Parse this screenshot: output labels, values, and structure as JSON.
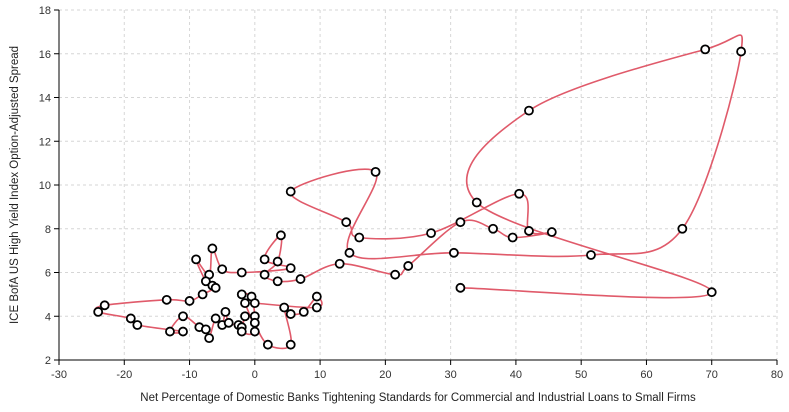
{
  "chart_data": {
    "type": "scatter",
    "connected": true,
    "line_style": "smooth",
    "xlabel": "Net Percentage of Domestic Banks Tightening Standards for Commercial and Industrial Loans to Small Firms",
    "ylabel": "ICE BofA US High Yield Index Option-Adjusted Spread",
    "xlim": [
      -30,
      80
    ],
    "ylim": [
      2,
      18
    ],
    "x_ticks": [
      -30,
      -20,
      -10,
      0,
      10,
      20,
      30,
      40,
      50,
      60,
      70,
      80
    ],
    "y_ticks": [
      2,
      4,
      6,
      8,
      10,
      12,
      14,
      16,
      18
    ],
    "grid": true,
    "line_color": "#e05a6a",
    "marker_fill": "#ffffff",
    "marker_stroke": "#000000",
    "points": [
      {
        "x": 31.5,
        "y": 5.3
      },
      {
        "x": 70.0,
        "y": 5.1
      },
      {
        "x": 34.0,
        "y": 9.2
      },
      {
        "x": 42.0,
        "y": 13.4
      },
      {
        "x": 69.0,
        "y": 16.2
      },
      {
        "x": 74.5,
        "y": 16.1
      },
      {
        "x": 65.5,
        "y": 8.0
      },
      {
        "x": 51.5,
        "y": 6.8
      },
      {
        "x": 30.5,
        "y": 6.9
      },
      {
        "x": 14.5,
        "y": 6.9
      },
      {
        "x": 18.5,
        "y": 10.6
      },
      {
        "x": 5.5,
        "y": 9.7
      },
      {
        "x": 14.0,
        "y": 8.3
      },
      {
        "x": 16.0,
        "y": 7.6
      },
      {
        "x": 27.0,
        "y": 7.8
      },
      {
        "x": 40.5,
        "y": 9.6
      },
      {
        "x": 42.0,
        "y": 7.9
      },
      {
        "x": 45.5,
        "y": 7.85
      },
      {
        "x": 39.5,
        "y": 7.6
      },
      {
        "x": 36.5,
        "y": 8.0
      },
      {
        "x": 31.5,
        "y": 8.3
      },
      {
        "x": 23.5,
        "y": 6.3
      },
      {
        "x": 21.5,
        "y": 5.9
      },
      {
        "x": 13.0,
        "y": 6.4
      },
      {
        "x": 7.0,
        "y": 5.7
      },
      {
        "x": 3.5,
        "y": 5.6
      },
      {
        "x": 1.5,
        "y": 5.9
      },
      {
        "x": 3.5,
        "y": 6.5
      },
      {
        "x": 4.0,
        "y": 7.7
      },
      {
        "x": 1.5,
        "y": 6.6
      },
      {
        "x": 5.5,
        "y": 6.2
      },
      {
        "x": -2.0,
        "y": 6.0
      },
      {
        "x": -5.0,
        "y": 6.15
      },
      {
        "x": -6.5,
        "y": 7.1
      },
      {
        "x": -7.0,
        "y": 5.9
      },
      {
        "x": -9.0,
        "y": 6.6
      },
      {
        "x": -7.5,
        "y": 5.6
      },
      {
        "x": -6.5,
        "y": 5.4
      },
      {
        "x": -6.0,
        "y": 5.3
      },
      {
        "x": -8.0,
        "y": 5.0
      },
      {
        "x": -10.0,
        "y": 4.7
      },
      {
        "x": -13.5,
        "y": 4.75
      },
      {
        "x": -23.0,
        "y": 4.5
      },
      {
        "x": -24.0,
        "y": 4.2
      },
      {
        "x": -19.0,
        "y": 3.9
      },
      {
        "x": -18.0,
        "y": 3.6
      },
      {
        "x": -11.0,
        "y": 3.3
      },
      {
        "x": -13.0,
        "y": 3.3
      },
      {
        "x": -11.0,
        "y": 4.0
      },
      {
        "x": -8.5,
        "y": 3.5
      },
      {
        "x": -7.5,
        "y": 3.4
      },
      {
        "x": -7.0,
        "y": 3.0
      },
      {
        "x": -6.0,
        "y": 3.9
      },
      {
        "x": -5.0,
        "y": 3.6
      },
      {
        "x": -4.5,
        "y": 4.2
      },
      {
        "x": -4.0,
        "y": 3.7
      },
      {
        "x": -2.5,
        "y": 3.6
      },
      {
        "x": -2.0,
        "y": 3.5
      },
      {
        "x": -1.5,
        "y": 4.0
      },
      {
        "x": -2.0,
        "y": 3.3
      },
      {
        "x": 0.0,
        "y": 3.3
      },
      {
        "x": -1.5,
        "y": 4.6
      },
      {
        "x": -2.0,
        "y": 5.0
      },
      {
        "x": -0.5,
        "y": 4.9
      },
      {
        "x": 0.0,
        "y": 4.0
      },
      {
        "x": 0.0,
        "y": 3.7
      },
      {
        "x": 2.0,
        "y": 2.7
      },
      {
        "x": 5.5,
        "y": 2.7
      },
      {
        "x": 4.5,
        "y": 4.4
      },
      {
        "x": 5.5,
        "y": 4.1
      },
      {
        "x": 7.5,
        "y": 4.2
      },
      {
        "x": 9.5,
        "y": 4.9
      },
      {
        "x": 9.5,
        "y": 4.4
      },
      {
        "x": 0.0,
        "y": 4.6
      }
    ]
  }
}
